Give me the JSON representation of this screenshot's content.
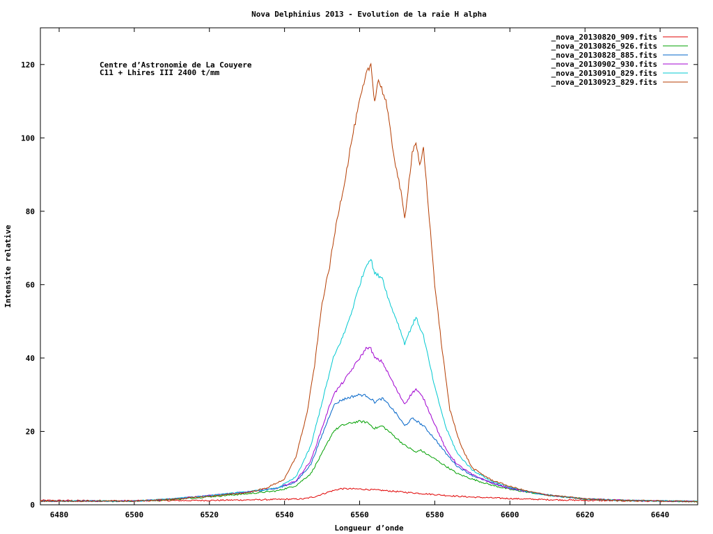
{
  "chart_data": {
    "type": "line",
    "title": "Nova Delphinius 2013 - Evolution de la raie H alpha",
    "xlabel": "Longueur d’onde",
    "ylabel": "Intensite relative",
    "xlim": [
      6475,
      6650
    ],
    "ylim": [
      0,
      130
    ],
    "x_ticks": [
      6480,
      6500,
      6520,
      6540,
      6560,
      6580,
      6600,
      6620,
      6640
    ],
    "y_ticks": [
      0,
      20,
      40,
      60,
      80,
      100,
      120
    ],
    "grid": false,
    "legend_position": "top-right",
    "annotation": {
      "line1": "Centre d’Astronomie de La Couyere",
      "line2": "C11 + Lhires III 2400 t/mm"
    },
    "series": [
      {
        "name": "_nova_20130820_909.fits",
        "color": "#e00000",
        "points": [
          [
            6475,
            1.2
          ],
          [
            6500,
            1.1
          ],
          [
            6520,
            1.2
          ],
          [
            6535,
            1.4
          ],
          [
            6545,
            1.6
          ],
          [
            6548,
            2.2
          ],
          [
            6552,
            3.6
          ],
          [
            6555,
            4.4
          ],
          [
            6560,
            4.3
          ],
          [
            6565,
            4.0
          ],
          [
            6570,
            3.6
          ],
          [
            6575,
            3.2
          ],
          [
            6580,
            2.8
          ],
          [
            6585,
            2.4
          ],
          [
            6590,
            2.1
          ],
          [
            6600,
            1.7
          ],
          [
            6610,
            1.4
          ],
          [
            6620,
            1.2
          ],
          [
            6635,
            1.0
          ],
          [
            6650,
            0.9
          ]
        ]
      },
      {
        "name": "_nova_20130826_926.fits",
        "color": "#00a000",
        "points": [
          [
            6475,
            1.0
          ],
          [
            6500,
            1.0
          ],
          [
            6510,
            1.4
          ],
          [
            6520,
            2.2
          ],
          [
            6530,
            3.0
          ],
          [
            6538,
            3.8
          ],
          [
            6543,
            5.2
          ],
          [
            6547,
            8.5
          ],
          [
            6550,
            14
          ],
          [
            6553,
            20
          ],
          [
            6555,
            21.5
          ],
          [
            6558,
            22.4
          ],
          [
            6560,
            22.7
          ],
          [
            6562,
            22.5
          ],
          [
            6564,
            20.8
          ],
          [
            6566,
            21.5
          ],
          [
            6568,
            19.8
          ],
          [
            6570,
            18.0
          ],
          [
            6572,
            16.2
          ],
          [
            6574,
            15.0
          ],
          [
            6575,
            14.2
          ],
          [
            6576,
            15.0
          ],
          [
            6580,
            12.5
          ],
          [
            6583,
            10.5
          ],
          [
            6586,
            8.5
          ],
          [
            6590,
            7.0
          ],
          [
            6595,
            5.4
          ],
          [
            6600,
            4.2
          ],
          [
            6605,
            3.4
          ],
          [
            6610,
            2.6
          ],
          [
            6620,
            1.6
          ],
          [
            6630,
            1.2
          ],
          [
            6650,
            0.9
          ]
        ]
      },
      {
        "name": "_nova_20130828_885.fits",
        "color": "#0064c8",
        "points": [
          [
            6475,
            1.0
          ],
          [
            6500,
            1.0
          ],
          [
            6510,
            1.6
          ],
          [
            6520,
            2.5
          ],
          [
            6530,
            3.5
          ],
          [
            6538,
            4.5
          ],
          [
            6543,
            6.2
          ],
          [
            6547,
            11
          ],
          [
            6550,
            19
          ],
          [
            6553,
            27
          ],
          [
            6555,
            28.5
          ],
          [
            6558,
            29.5
          ],
          [
            6560,
            30.0
          ],
          [
            6562,
            29.7
          ],
          [
            6564,
            28.0
          ],
          [
            6566,
            29.0
          ],
          [
            6568,
            27.0
          ],
          [
            6570,
            24.5
          ],
          [
            6572,
            21.5
          ],
          [
            6574,
            23.5
          ],
          [
            6575,
            23.0
          ],
          [
            6577,
            21.5
          ],
          [
            6580,
            18.0
          ],
          [
            6583,
            14.0
          ],
          [
            6586,
            10.5
          ],
          [
            6590,
            8.0
          ],
          [
            6595,
            6.0
          ],
          [
            6600,
            4.5
          ],
          [
            6605,
            3.5
          ],
          [
            6610,
            2.7
          ],
          [
            6620,
            1.6
          ],
          [
            6630,
            1.2
          ],
          [
            6650,
            0.9
          ]
        ]
      },
      {
        "name": "_nova_20130902_930.fits",
        "color": "#a000d0",
        "points": [
          [
            6475,
            1.0
          ],
          [
            6500,
            1.0
          ],
          [
            6510,
            1.6
          ],
          [
            6520,
            2.5
          ],
          [
            6530,
            3.5
          ],
          [
            6538,
            4.5
          ],
          [
            6543,
            6.5
          ],
          [
            6547,
            12
          ],
          [
            6550,
            21
          ],
          [
            6553,
            30
          ],
          [
            6556,
            34
          ],
          [
            6558,
            37
          ],
          [
            6560,
            40
          ],
          [
            6562,
            43
          ],
          [
            6563,
            42.5
          ],
          [
            6564,
            40
          ],
          [
            6566,
            39
          ],
          [
            6568,
            35
          ],
          [
            6570,
            31
          ],
          [
            6572,
            27.5
          ],
          [
            6574,
            30.5
          ],
          [
            6575,
            31.5
          ],
          [
            6577,
            29
          ],
          [
            6580,
            22
          ],
          [
            6583,
            15
          ],
          [
            6586,
            11
          ],
          [
            6590,
            8.2
          ],
          [
            6595,
            6.0
          ],
          [
            6600,
            4.5
          ],
          [
            6605,
            3.5
          ],
          [
            6610,
            2.6
          ],
          [
            6620,
            1.6
          ],
          [
            6630,
            1.2
          ],
          [
            6650,
            0.9
          ]
        ]
      },
      {
        "name": "_nova_20130910_829.fits",
        "color": "#00c8d0",
        "points": [
          [
            6475,
            1.0
          ],
          [
            6500,
            1.0
          ],
          [
            6510,
            1.6
          ],
          [
            6520,
            2.5
          ],
          [
            6530,
            3.5
          ],
          [
            6538,
            4.5
          ],
          [
            6543,
            7.5
          ],
          [
            6547,
            16
          ],
          [
            6550,
            28
          ],
          [
            6553,
            40
          ],
          [
            6556,
            47
          ],
          [
            6558,
            53
          ],
          [
            6560,
            60
          ],
          [
            6562,
            66
          ],
          [
            6563,
            67
          ],
          [
            6564,
            63
          ],
          [
            6566,
            62
          ],
          [
            6568,
            55
          ],
          [
            6570,
            50
          ],
          [
            6572,
            44
          ],
          [
            6574,
            49
          ],
          [
            6575,
            51
          ],
          [
            6577,
            46
          ],
          [
            6580,
            32
          ],
          [
            6583,
            21
          ],
          [
            6586,
            14
          ],
          [
            6590,
            9.5
          ],
          [
            6595,
            6.5
          ],
          [
            6600,
            4.8
          ],
          [
            6605,
            3.5
          ],
          [
            6610,
            2.6
          ],
          [
            6620,
            1.6
          ],
          [
            6630,
            1.2
          ],
          [
            6650,
            0.9
          ]
        ]
      },
      {
        "name": "_nova_20130923_829.fits",
        "color": "#b43c00",
        "points": [
          [
            6475,
            1.0
          ],
          [
            6500,
            1.0
          ],
          [
            6510,
            1.5
          ],
          [
            6520,
            2.3
          ],
          [
            6530,
            3.3
          ],
          [
            6535,
            4.5
          ],
          [
            6540,
            7
          ],
          [
            6543,
            13
          ],
          [
            6546,
            25
          ],
          [
            6548,
            38
          ],
          [
            6550,
            55
          ],
          [
            6552,
            65
          ],
          [
            6554,
            78
          ],
          [
            6556,
            88
          ],
          [
            6558,
            100
          ],
          [
            6560,
            110
          ],
          [
            6562,
            118
          ],
          [
            6563,
            120
          ],
          [
            6564,
            110
          ],
          [
            6565,
            116
          ],
          [
            6567,
            110
          ],
          [
            6569,
            96
          ],
          [
            6571,
            85
          ],
          [
            6572,
            78
          ],
          [
            6574,
            96
          ],
          [
            6575,
            99
          ],
          [
            6576,
            92
          ],
          [
            6577,
            97
          ],
          [
            6578,
            85
          ],
          [
            6580,
            60
          ],
          [
            6582,
            42
          ],
          [
            6584,
            26
          ],
          [
            6587,
            16
          ],
          [
            6590,
            10
          ],
          [
            6595,
            6.8
          ],
          [
            6600,
            5.0
          ],
          [
            6605,
            3.6
          ],
          [
            6610,
            2.7
          ],
          [
            6620,
            1.6
          ],
          [
            6630,
            1.2
          ],
          [
            6650,
            0.9
          ]
        ]
      }
    ]
  }
}
